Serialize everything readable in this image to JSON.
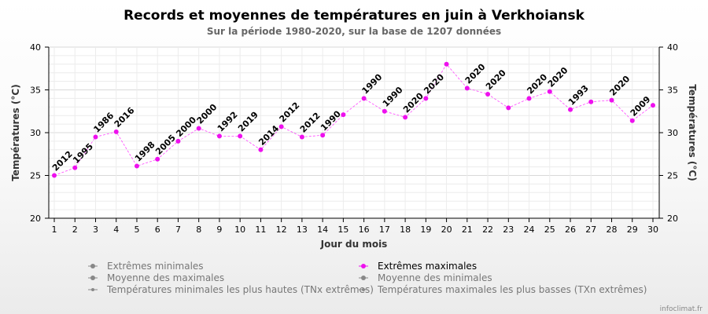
{
  "title": "Records et moyennes de températures en juin à Verkhoiansk",
  "subtitle": "Sur la période 1980-2020, sur la base de 1207 données",
  "credit": "infoclimat.fr",
  "colors": {
    "max_series": "#ee10ee",
    "legend_inactive": "#888888"
  },
  "legend": [
    {
      "label": "Extrêmes minimales",
      "active": false
    },
    {
      "label": "Extrêmes maximales",
      "active": true
    },
    {
      "label": "Moyenne des maximales",
      "active": false
    },
    {
      "label": "Moyenne des minimales",
      "active": false
    },
    {
      "label": "Températures minimales les plus hautes (TNx extrêmes)",
      "active": false
    },
    {
      "label": "Températures maximales les plus basses (TXn extrêmes)",
      "active": false
    }
  ],
  "chart_data": {
    "type": "line",
    "title": "Records et moyennes de températures en juin à Verkhoiansk",
    "subtitle": "Sur la période 1980-2020, sur la base de 1207 données",
    "xlabel": "Jour du mois",
    "ylabel": "Températures (°C)",
    "ylabel_right": "Températures (°C)",
    "ylim": [
      20,
      40
    ],
    "yticks": [
      20,
      25,
      30,
      35,
      40
    ],
    "x": [
      1,
      2,
      3,
      4,
      5,
      6,
      7,
      8,
      9,
      10,
      11,
      12,
      13,
      14,
      15,
      16,
      17,
      18,
      19,
      20,
      21,
      22,
      23,
      24,
      25,
      26,
      27,
      28,
      29,
      30
    ],
    "grid": true,
    "legend_position": "bottom",
    "series": [
      {
        "name": "Extrêmes maximales",
        "values": [
          25.0,
          25.9,
          29.5,
          30.1,
          26.1,
          26.9,
          29.0,
          30.5,
          29.6,
          29.6,
          28.0,
          30.7,
          29.5,
          29.7,
          32.1,
          34.0,
          32.5,
          31.8,
          34.0,
          38.0,
          35.2,
          34.5,
          32.9,
          34.0,
          34.8,
          32.7,
          33.6,
          33.8,
          31.4,
          33.2
        ],
        "years": [
          "2012",
          "1995",
          "1986",
          "2016",
          "1998",
          "2005",
          "2000",
          "2000",
          "1992",
          "2019",
          "2014",
          "2012",
          "2012",
          "1990",
          "",
          "1990",
          "1990",
          "2020",
          "2020",
          "",
          "2020",
          "2020",
          "",
          "2020",
          "2020",
          "1993",
          "",
          "2020",
          "2009",
          ""
        ]
      }
    ]
  }
}
